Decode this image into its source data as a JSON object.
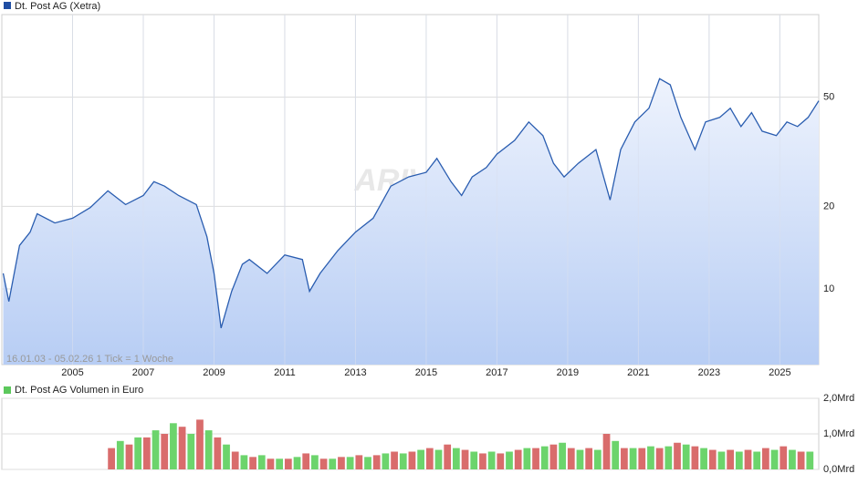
{
  "chart_data": [
    {
      "type": "line",
      "title": "Dt. Post AG (Xetra)",
      "subtitle": "16.01.03 - 05.02.26   1 Tick = 1 Woche",
      "watermark": "ARIVA",
      "log_scale": true,
      "grid": true,
      "color": "#2a5db0",
      "xlim": [
        2003,
        2026.1
      ],
      "xticks": [
        2005,
        2007,
        2009,
        2011,
        2013,
        2015,
        2017,
        2019,
        2021,
        2023,
        2025
      ],
      "ylim": [
        5.3,
        100
      ],
      "yticks": [
        10,
        20,
        50
      ],
      "x": [
        2003.04,
        2003.2,
        2003.5,
        2003.8,
        2004.0,
        2004.5,
        2005.0,
        2005.5,
        2006.0,
        2006.5,
        2007.0,
        2007.3,
        2007.6,
        2008.0,
        2008.5,
        2008.8,
        2009.0,
        2009.2,
        2009.5,
        2009.8,
        2010.0,
        2010.5,
        2011.0,
        2011.5,
        2011.7,
        2012.0,
        2012.5,
        2013.0,
        2013.5,
        2014.0,
        2014.5,
        2015.0,
        2015.3,
        2015.7,
        2016.0,
        2016.3,
        2016.7,
        2017.0,
        2017.5,
        2017.9,
        2018.3,
        2018.6,
        2018.9,
        2019.3,
        2019.8,
        2020.2,
        2020.5,
        2020.9,
        2021.3,
        2021.6,
        2021.9,
        2022.2,
        2022.6,
        2022.9,
        2023.3,
        2023.6,
        2023.9,
        2024.2,
        2024.5,
        2024.9,
        2025.2,
        2025.5,
        2025.8,
        2026.1
      ],
      "values": [
        11.4,
        9.0,
        14.4,
        16.1,
        18.8,
        17.4,
        18.1,
        19.8,
        22.8,
        20.3,
        21.9,
        24.6,
        23.7,
        21.9,
        20.3,
        15.5,
        11.4,
        7.2,
        9.8,
        12.3,
        12.8,
        11.4,
        13.3,
        12.8,
        9.8,
        11.4,
        13.8,
        16.1,
        18.1,
        23.7,
        25.6,
        26.6,
        29.9,
        24.6,
        21.9,
        25.6,
        27.7,
        31.0,
        34.8,
        40.6,
        36.2,
        28.7,
        25.6,
        28.7,
        32.2,
        21.1,
        32.2,
        40.6,
        45.6,
        58.4,
        55.5,
        42.2,
        32.2,
        40.6,
        42.2,
        45.6,
        39.1,
        43.9,
        37.6,
        36.2,
        40.6,
        39.1,
        42.2,
        48.5
      ]
    },
    {
      "type": "bar",
      "title": "Dt. Post AG Volumen in Euro",
      "grid": true,
      "bar_colors": [
        "#d96c6c",
        "#6cd46c"
      ],
      "xlim": [
        2003,
        2026.1
      ],
      "ylim": [
        0,
        2
      ],
      "yticks": [
        {
          "value": 0,
          "label": "0,0Mrd"
        },
        {
          "value": 1,
          "label": "1,0Mrd"
        },
        {
          "value": 2,
          "label": "2,0Mrd"
        }
      ],
      "x": [
        2006,
        2006.25,
        2006.5,
        2006.75,
        2007,
        2007.25,
        2007.5,
        2007.75,
        2008,
        2008.25,
        2008.5,
        2008.75,
        2009,
        2009.25,
        2009.5,
        2009.75,
        2010,
        2010.25,
        2010.5,
        2010.75,
        2011,
        2011.25,
        2011.5,
        2011.75,
        2012,
        2012.25,
        2012.5,
        2012.75,
        2013,
        2013.25,
        2013.5,
        2013.75,
        2014,
        2014.25,
        2014.5,
        2014.75,
        2015,
        2015.25,
        2015.5,
        2015.75,
        2016,
        2016.25,
        2016.5,
        2016.75,
        2017,
        2017.25,
        2017.5,
        2017.75,
        2018,
        2018.25,
        2018.5,
        2018.75,
        2019,
        2019.25,
        2019.5,
        2019.75,
        2020,
        2020.25,
        2020.5,
        2020.75,
        2021,
        2021.25,
        2021.5,
        2021.75,
        2022,
        2022.25,
        2022.5,
        2022.75,
        2023,
        2023.25,
        2023.5,
        2023.75,
        2024,
        2024.25,
        2024.5,
        2024.75,
        2025,
        2025.25,
        2025.5,
        2025.75
      ],
      "values": [
        0.6,
        0.8,
        0.7,
        0.9,
        0.9,
        1.1,
        1.0,
        1.3,
        1.2,
        1.0,
        1.4,
        1.1,
        0.9,
        0.7,
        0.5,
        0.4,
        0.35,
        0.4,
        0.3,
        0.3,
        0.3,
        0.35,
        0.45,
        0.4,
        0.3,
        0.3,
        0.35,
        0.35,
        0.4,
        0.35,
        0.4,
        0.45,
        0.5,
        0.45,
        0.5,
        0.55,
        0.6,
        0.55,
        0.7,
        0.6,
        0.55,
        0.5,
        0.45,
        0.5,
        0.45,
        0.5,
        0.55,
        0.6,
        0.6,
        0.65,
        0.7,
        0.75,
        0.6,
        0.55,
        0.6,
        0.55,
        1.0,
        0.8,
        0.6,
        0.6,
        0.6,
        0.65,
        0.6,
        0.65,
        0.75,
        0.7,
        0.65,
        0.6,
        0.55,
        0.5,
        0.55,
        0.5,
        0.55,
        0.5,
        0.6,
        0.55,
        0.65,
        0.55,
        0.5,
        0.5
      ]
    }
  ]
}
